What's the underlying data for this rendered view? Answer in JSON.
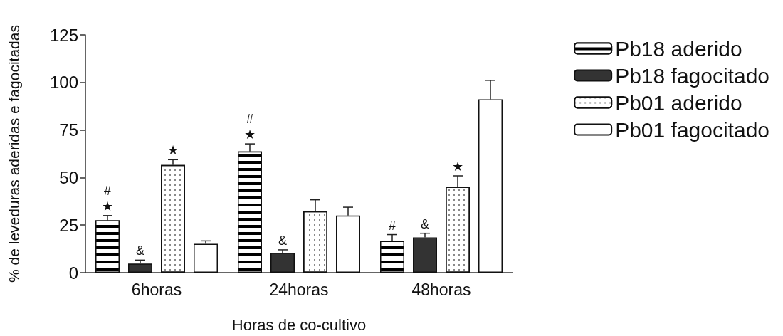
{
  "chart_data": {
    "type": "bar",
    "xlabel": "Horas de co-cultivo",
    "ylabel": "% de leveduras aderidas e fagocitadas",
    "categories": [
      "6horas",
      "24horas",
      "48horas"
    ],
    "series": [
      {
        "name": "Pb18 aderido",
        "color": "#000000",
        "values": [
          27.5,
          63.7,
          16.8
        ],
        "errors": [
          2.5,
          4,
          3.2
        ],
        "value_labels": [
          "#\n★",
          "#\n★",
          "#"
        ]
      },
      {
        "name": "Pb18 fagocitado",
        "color": "#333333",
        "values": [
          4.8,
          10.5,
          18.5
        ],
        "errors": [
          1.8,
          1.5,
          2.2
        ],
        "value_labels": [
          "&",
          "&",
          "&"
        ]
      },
      {
        "name": "Pb01 aderido",
        "color": "#ffffff",
        "values": [
          56.6,
          32.3,
          45.1
        ],
        "errors": [
          2.8,
          6,
          5.8
        ],
        "value_labels": [
          "★",
          null,
          "★"
        ]
      },
      {
        "name": "Pb01 fagocitado",
        "color": "#ffffff",
        "values": [
          15.2,
          30,
          91.1
        ],
        "errors": [
          1.5,
          4.4,
          10
        ]
      }
    ],
    "ylim": [
      0,
      125
    ],
    "yticks": [
      0,
      25,
      50,
      75,
      100,
      125
    ],
    "grid": false,
    "legend": "top right"
  }
}
